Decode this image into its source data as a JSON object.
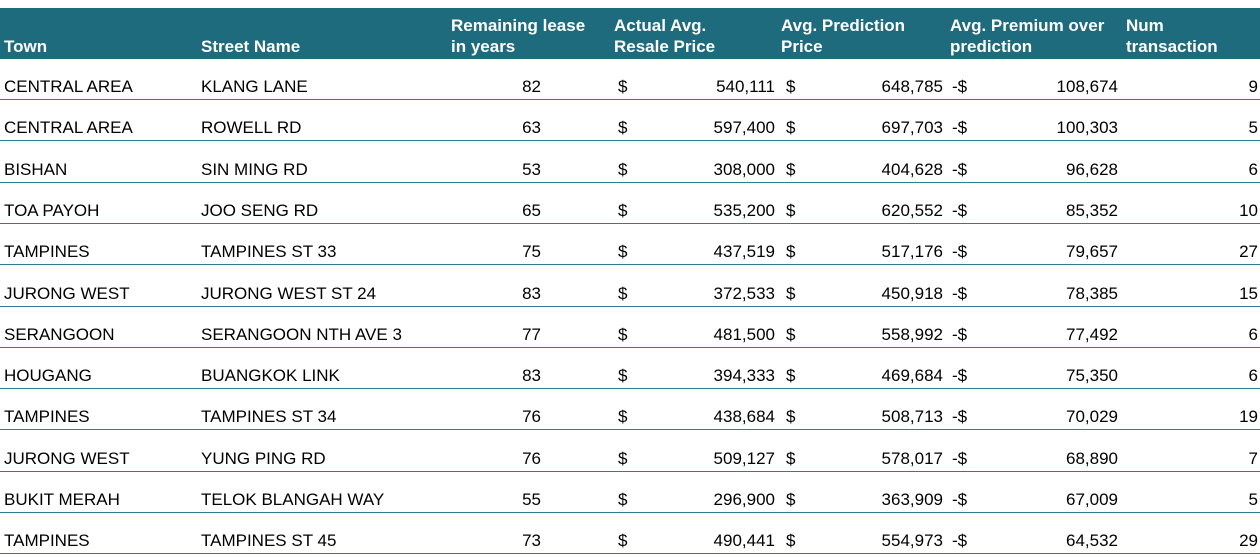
{
  "headers": {
    "town": "Town",
    "street": "Street Name",
    "lease": "Remaining lease\nin years",
    "actual": "Actual Avg.\nResale Price",
    "prediction": "Avg. Prediction\nPrice",
    "premium": "Avg. Premium over\nprediction",
    "num": "Num\ntransaction"
  },
  "rows": [
    {
      "town": "CENTRAL AREA",
      "street": "KLANG LANE",
      "lease": "82",
      "actual_cur": "$",
      "actual": "540,111",
      "pred_cur": "$",
      "pred": "648,785",
      "prem_cur": "-$",
      "prem": "108,674",
      "num": "9"
    },
    {
      "town": "CENTRAL AREA",
      "street": "ROWELL RD",
      "lease": "63",
      "actual_cur": "$",
      "actual": "597,400",
      "pred_cur": "$",
      "pred": "697,703",
      "prem_cur": "-$",
      "prem": "100,303",
      "num": "5"
    },
    {
      "town": "BISHAN",
      "street": "SIN MING RD",
      "lease": "53",
      "actual_cur": "$",
      "actual": "308,000",
      "pred_cur": "$",
      "pred": "404,628",
      "prem_cur": "-$",
      "prem": "96,628",
      "num": "6"
    },
    {
      "town": "TOA PAYOH",
      "street": "JOO SENG RD",
      "lease": "65",
      "actual_cur": "$",
      "actual": "535,200",
      "pred_cur": "$",
      "pred": "620,552",
      "prem_cur": "-$",
      "prem": "85,352",
      "num": "10"
    },
    {
      "town": "TAMPINES",
      "street": "TAMPINES ST 33",
      "lease": "75",
      "actual_cur": "$",
      "actual": "437,519",
      "pred_cur": "$",
      "pred": "517,176",
      "prem_cur": "-$",
      "prem": "79,657",
      "num": "27"
    },
    {
      "town": "JURONG WEST",
      "street": "JURONG WEST ST 24",
      "lease": "83",
      "actual_cur": "$",
      "actual": "372,533",
      "pred_cur": "$",
      "pred": "450,918",
      "prem_cur": "-$",
      "prem": "78,385",
      "num": "15"
    },
    {
      "town": "SERANGOON",
      "street": "SERANGOON NTH AVE 3",
      "lease": "77",
      "actual_cur": "$",
      "actual": "481,500",
      "pred_cur": "$",
      "pred": "558,992",
      "prem_cur": "-$",
      "prem": "77,492",
      "num": "6"
    },
    {
      "town": "HOUGANG",
      "street": "BUANGKOK LINK",
      "lease": "83",
      "actual_cur": "$",
      "actual": "394,333",
      "pred_cur": "$",
      "pred": "469,684",
      "prem_cur": "-$",
      "prem": "75,350",
      "num": "6"
    },
    {
      "town": "TAMPINES",
      "street": "TAMPINES ST 34",
      "lease": "76",
      "actual_cur": "$",
      "actual": "438,684",
      "pred_cur": "$",
      "pred": "508,713",
      "prem_cur": "-$",
      "prem": "70,029",
      "num": "19"
    },
    {
      "town": "JURONG WEST",
      "street": "YUNG PING RD",
      "lease": "76",
      "actual_cur": "$",
      "actual": "509,127",
      "pred_cur": "$",
      "pred": "578,017",
      "prem_cur": "-$",
      "prem": "68,890",
      "num": "7"
    },
    {
      "town": "BUKIT MERAH",
      "street": "TELOK BLANGAH WAY",
      "lease": "55",
      "actual_cur": "$",
      "actual": "296,900",
      "pred_cur": "$",
      "pred": "363,909",
      "prem_cur": "-$",
      "prem": "67,009",
      "num": "5"
    },
    {
      "town": "TAMPINES",
      "street": "TAMPINES ST 45",
      "lease": "73",
      "actual_cur": "$",
      "actual": "490,441",
      "pred_cur": "$",
      "pred": "554,973",
      "prem_cur": "-$",
      "prem": "64,532",
      "num": "29"
    }
  ],
  "colors": {
    "header_bg": "#1e6b7e",
    "header_text": "#ffffff",
    "row_border": "#2e7d8c"
  }
}
